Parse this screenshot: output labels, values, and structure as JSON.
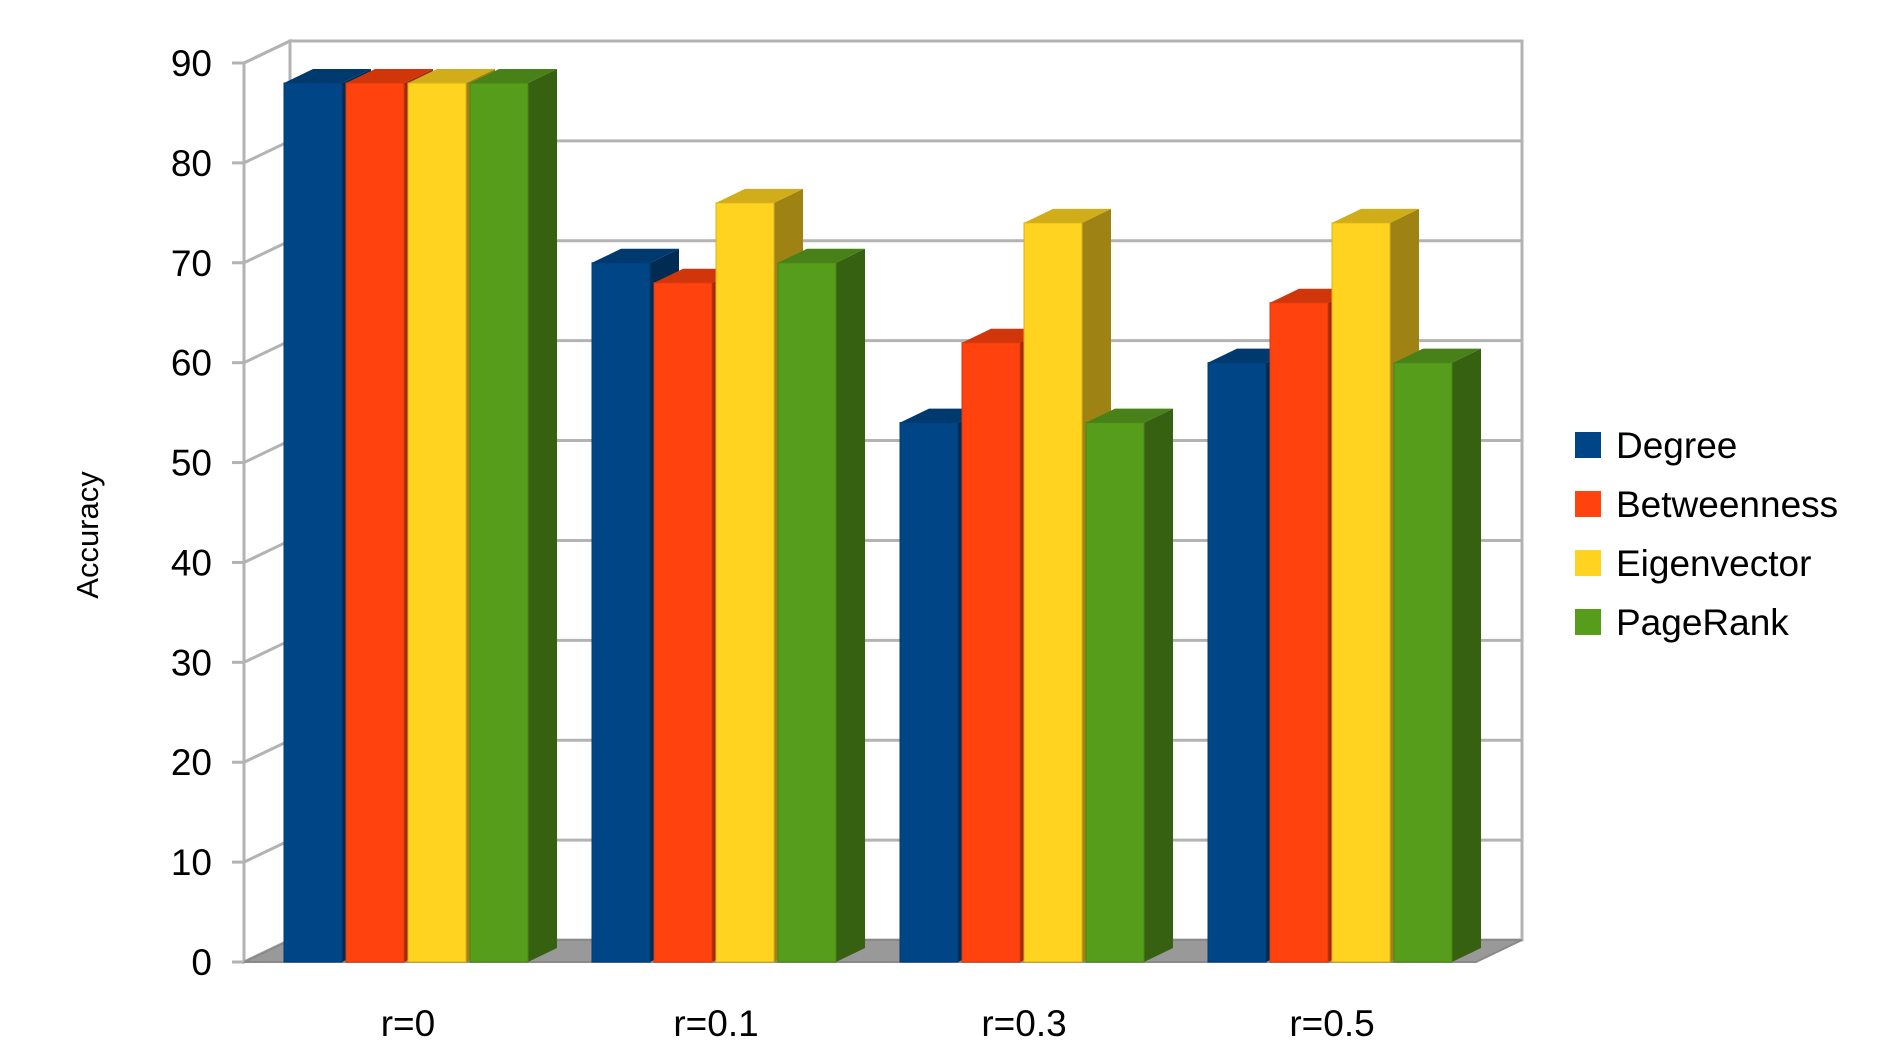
{
  "chart_data": {
    "type": "bar",
    "title": "",
    "xlabel": "",
    "ylabel": "Accuracy",
    "categories": [
      "r=0",
      "r=0.1",
      "r=0.3",
      "r=0.5"
    ],
    "series": [
      {
        "name": "Degree",
        "color": "#004586",
        "values": [
          88,
          70,
          54,
          60
        ]
      },
      {
        "name": "Betweenness",
        "color": "#ff420e",
        "values": [
          88,
          68,
          62,
          66
        ]
      },
      {
        "name": "Eigenvector",
        "color": "#ffd320",
        "values": [
          88,
          76,
          74,
          74
        ]
      },
      {
        "name": "PageRank",
        "color": "#579d1c",
        "values": [
          88,
          70,
          54,
          60
        ]
      }
    ],
    "ylim": [
      0,
      90
    ],
    "yticks": [
      "0",
      "10",
      "20",
      "30",
      "40",
      "50",
      "60",
      "70",
      "80",
      "90"
    ],
    "grid": true,
    "legend_position": "right",
    "style": "3d-bar"
  }
}
